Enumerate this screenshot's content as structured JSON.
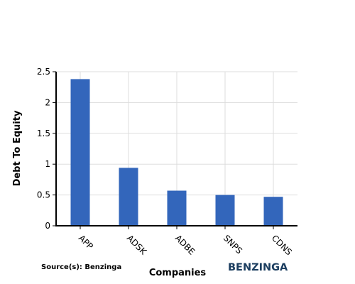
{
  "chart_data": {
    "type": "bar",
    "categories": [
      "APP",
      "ADSK",
      "ADBE",
      "SNPS",
      "CDNS"
    ],
    "values": [
      2.38,
      0.94,
      0.57,
      0.5,
      0.47
    ],
    "xlabel": "Companies",
    "ylabel": "Debt To Equity",
    "ylim": [
      0,
      2.5
    ],
    "yticks": [
      "0",
      "0.5",
      "1",
      "1.5",
      "2",
      "2.5"
    ],
    "grid": true,
    "bar_color": "#3366bb"
  },
  "footer": {
    "source": "Source(s): Benzinga",
    "brand": "BENZINGA"
  },
  "colors": {
    "brand": "#1b3d5f",
    "grid": "#dddddd"
  }
}
